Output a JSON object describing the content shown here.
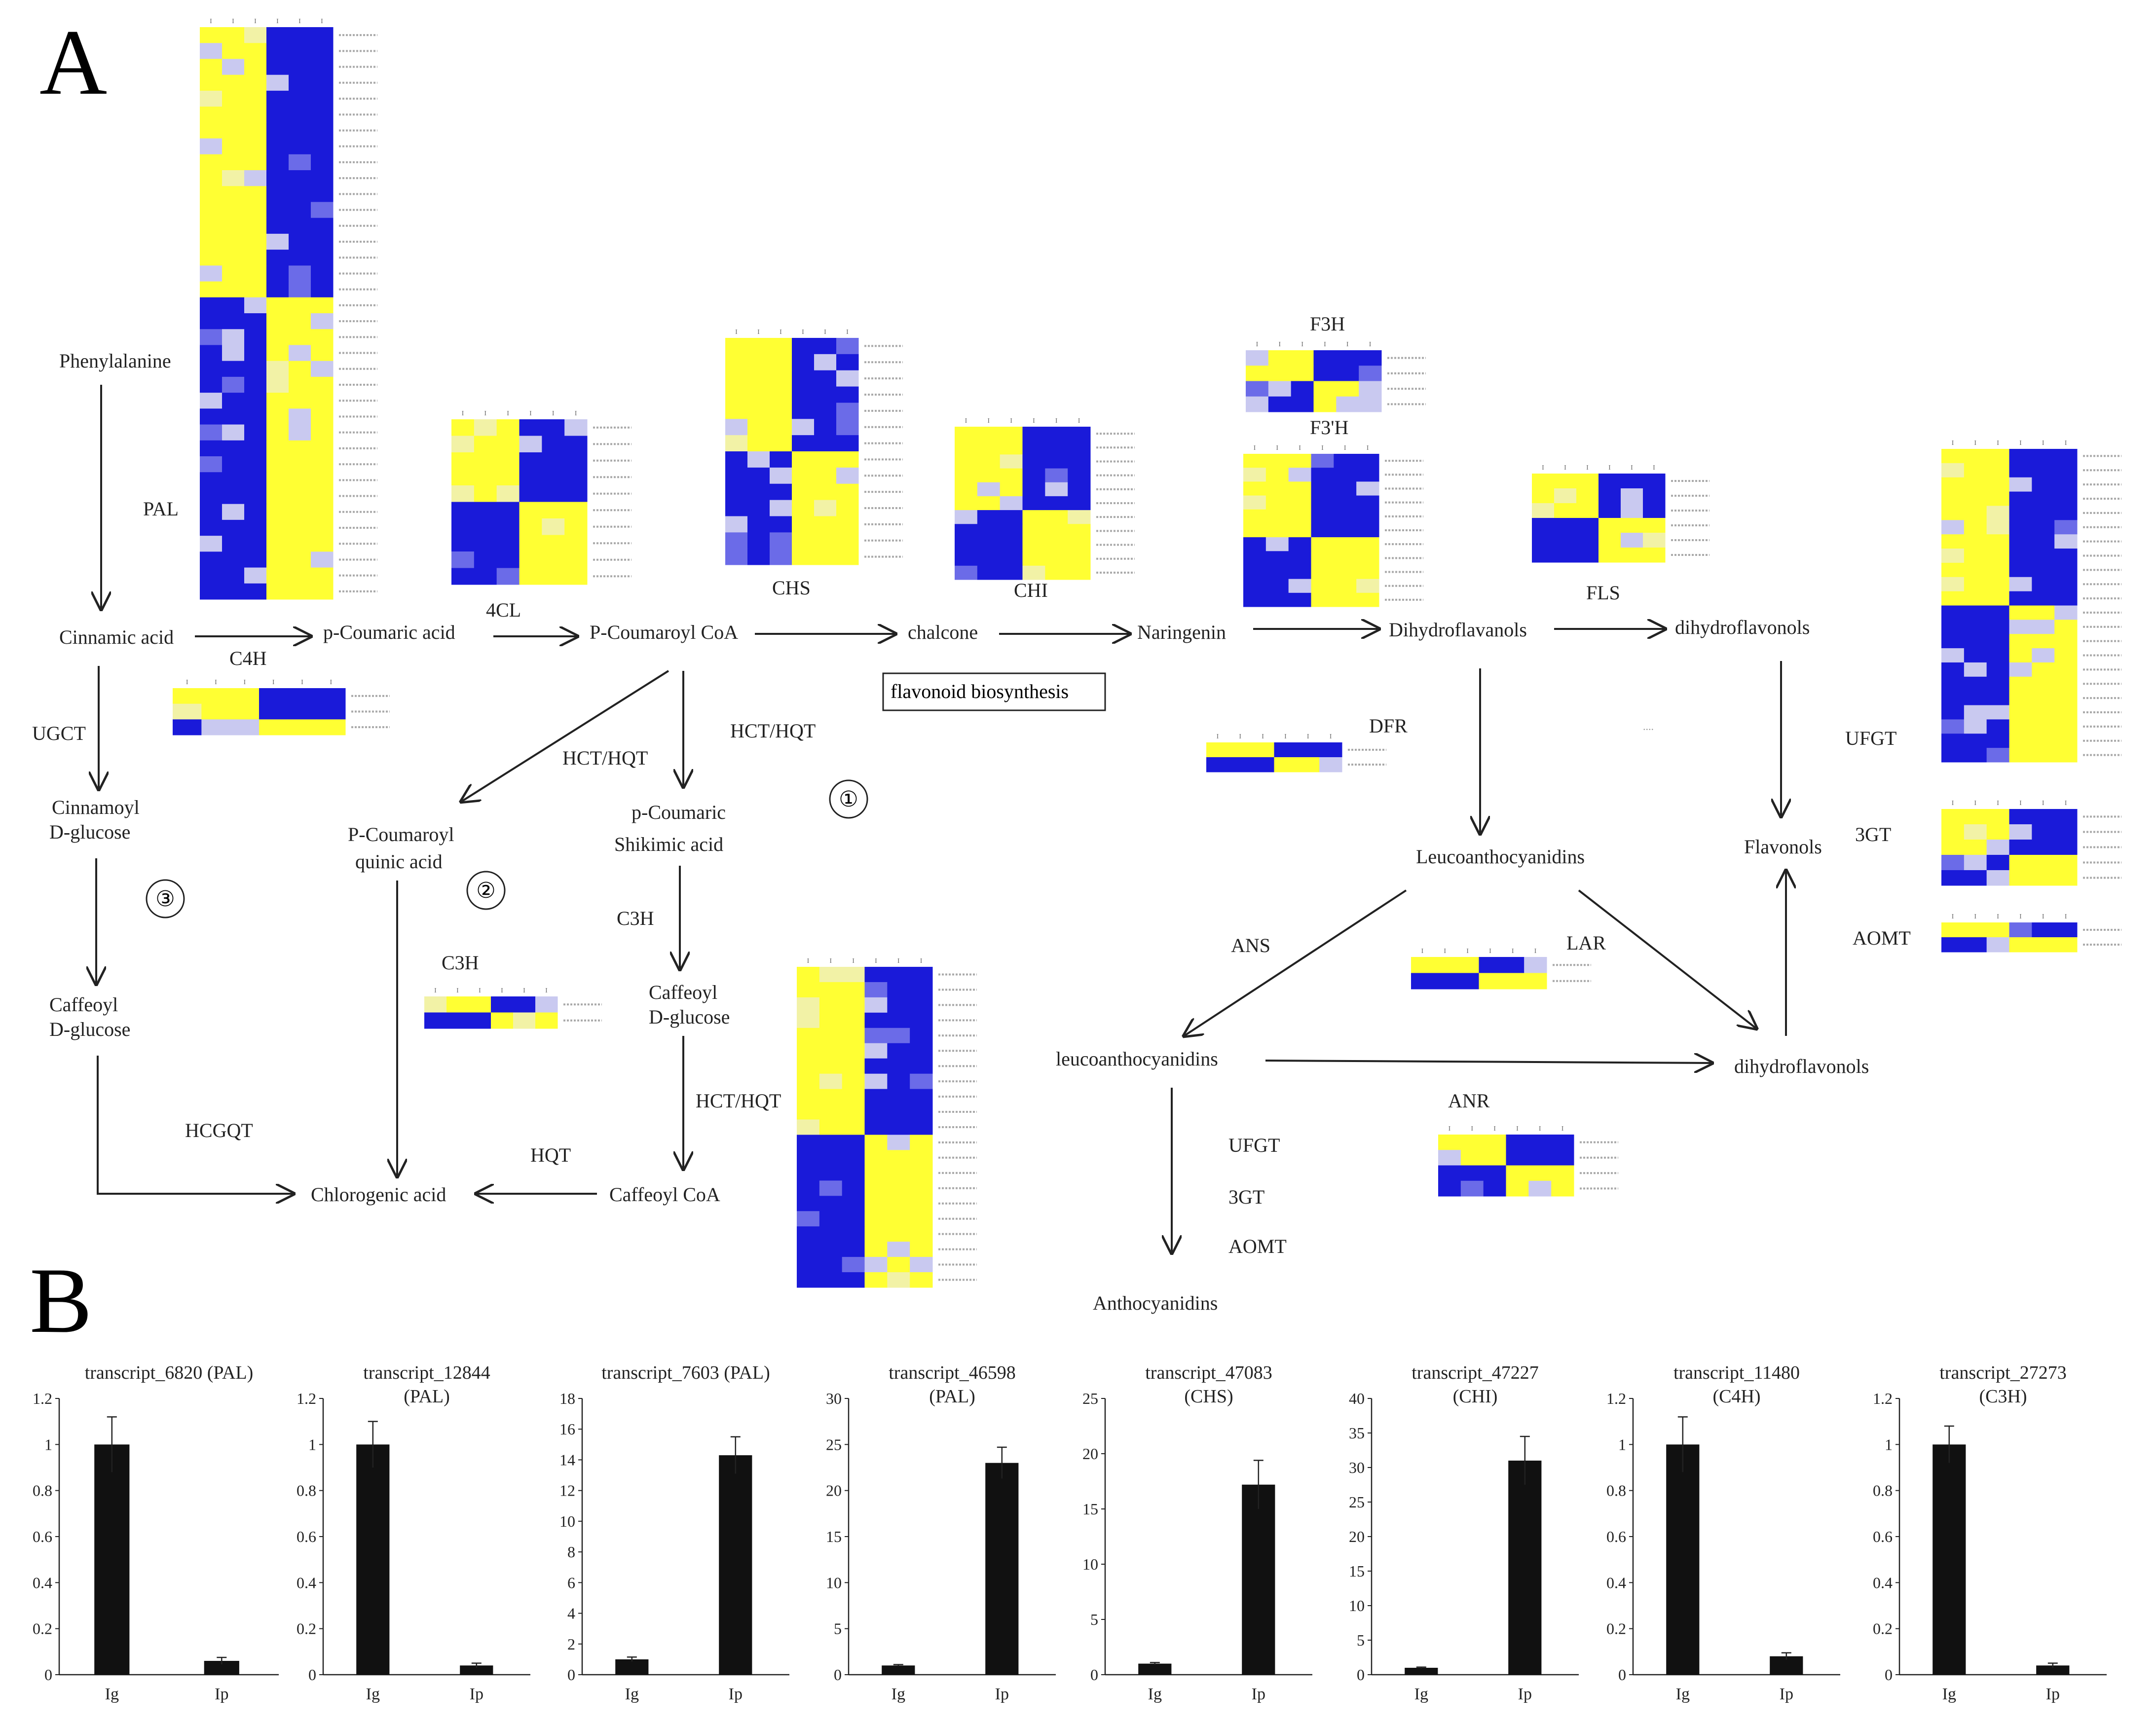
{
  "panels": {
    "a": "A",
    "b": "B"
  },
  "colors": {
    "low": "#1a1ad9",
    "high": "#ffff33",
    "line": "#222222",
    "bar": "#111111"
  },
  "nodes": [
    {
      "id": "phe",
      "label": "Phenylalanine"
    },
    {
      "id": "cin",
      "label": "Cinnamic acid"
    },
    {
      "id": "pcou",
      "label": "p-Coumaric acid"
    },
    {
      "id": "pcoa",
      "label": "P-Coumaroyl CoA"
    },
    {
      "id": "chal",
      "label": "chalcone"
    },
    {
      "id": "nar",
      "label": "Naringenin"
    },
    {
      "id": "dhf1",
      "label": "Dihydroflavanols"
    },
    {
      "id": "dhf2",
      "label": "dihydroflavonols"
    },
    {
      "id": "cinglu1",
      "label": "Cinnamoyl"
    },
    {
      "id": "cinglu2",
      "label": "D-glucose"
    },
    {
      "id": "pcq1",
      "label": "P-Coumaroyl"
    },
    {
      "id": "pcq2",
      "label": "quinic acid"
    },
    {
      "id": "pcs1",
      "label": "p-Coumaric"
    },
    {
      "id": "pcs2",
      "label": "Shikimic acid"
    },
    {
      "id": "cafglu1",
      "label": "Caffeoyl"
    },
    {
      "id": "cafglu2",
      "label": "D-glucose"
    },
    {
      "id": "caf2a",
      "label": "Caffeoyl"
    },
    {
      "id": "caf2b",
      "label": "D-glucose"
    },
    {
      "id": "chl",
      "label": "Chlorogenic acid"
    },
    {
      "id": "cafcoa",
      "label": "Caffeoyl  CoA"
    },
    {
      "id": "leu1",
      "label": "Leucoanthocyanidins"
    },
    {
      "id": "leu2",
      "label": "leucoanthocyanidins"
    },
    {
      "id": "dhf3",
      "label": "dihydroflavonols"
    },
    {
      "id": "flav",
      "label": "Flavonols"
    },
    {
      "id": "anth",
      "label": "Anthocyanidins"
    }
  ],
  "enzymes": [
    {
      "id": "pal",
      "label": "PAL"
    },
    {
      "id": "c4h",
      "label": "C4H"
    },
    {
      "id": "cl4",
      "label": "4CL"
    },
    {
      "id": "chs",
      "label": "CHS"
    },
    {
      "id": "chi",
      "label": "CHI"
    },
    {
      "id": "f3h",
      "label": "F3H"
    },
    {
      "id": "f3ph",
      "label": "F3'H"
    },
    {
      "id": "fls",
      "label": "FLS"
    },
    {
      "id": "dfr",
      "label": "DFR"
    },
    {
      "id": "ugct",
      "label": "UGCT"
    },
    {
      "id": "hct1",
      "label": "HCT/HQT"
    },
    {
      "id": "hct2",
      "label": "HCT/HQT"
    },
    {
      "id": "c3h1",
      "label": "C3H"
    },
    {
      "id": "c3h2",
      "label": "C3H"
    },
    {
      "id": "hct3",
      "label": "HCT/HQT"
    },
    {
      "id": "hcgqt",
      "label": "HCGQT"
    },
    {
      "id": "hqt",
      "label": "HQT"
    },
    {
      "id": "ans",
      "label": "ANS"
    },
    {
      "id": "lar",
      "label": "LAR"
    },
    {
      "id": "anr",
      "label": "ANR"
    },
    {
      "id": "ufgt1",
      "label": "UFGT"
    },
    {
      "id": "gt1",
      "label": "3GT"
    },
    {
      "id": "aomt1",
      "label": "AOMT"
    },
    {
      "id": "ufgt2",
      "label": "UFGT"
    },
    {
      "id": "gt2",
      "label": "3GT"
    },
    {
      "id": "aomt2",
      "label": "AOMT"
    }
  ],
  "box_label": "flavonoid biosynthesis",
  "circles": [
    "①",
    "②",
    "③"
  ],
  "dots": "....",
  "heatmap_col_labels": [
    "I",
    "I",
    "I",
    "I",
    "I",
    "I"
  ],
  "heatmaps": [
    {
      "id": "PAL",
      "rows": 36,
      "split": 0.45
    },
    {
      "id": "C4H",
      "rows": 3,
      "split": 0.5
    },
    {
      "id": "4CL",
      "rows": 10,
      "split": 0.5
    },
    {
      "id": "CHS",
      "rows": 14,
      "split": 0.5
    },
    {
      "id": "CHI",
      "rows": 11,
      "split": 0.5
    },
    {
      "id": "F3H",
      "rows": 4,
      "split": 0.5
    },
    {
      "id": "F3'H",
      "rows": 11,
      "split": 0.5
    },
    {
      "id": "FLS",
      "rows": 6,
      "split": 0.5
    },
    {
      "id": "DFR",
      "rows": 2,
      "split": 0.5
    },
    {
      "id": "C3H",
      "rows": 2,
      "split": 0.5
    },
    {
      "id": "HQT",
      "rows": 21,
      "split": 0.5
    },
    {
      "id": "LAR",
      "rows": 2,
      "split": 0.5
    },
    {
      "id": "ANR",
      "rows": 4,
      "split": 0.5
    },
    {
      "id": "UFGT",
      "rows": 22,
      "split": 0.5
    },
    {
      "id": "3GT",
      "rows": 5,
      "split": 0.5
    },
    {
      "id": "AOMT",
      "rows": 2,
      "split": 0.5
    }
  ],
  "chart_data": [
    {
      "type": "bar",
      "title": [
        "transcript_6820 (PAL)"
      ],
      "categories": [
        "Ig",
        "Ip"
      ],
      "values": [
        1,
        0.06
      ],
      "errors": [
        0.12,
        0.015
      ],
      "ylim": [
        0,
        1.2
      ],
      "yticks": [
        "0",
        "0.2",
        "0.4",
        "0.6",
        "0.8",
        "1",
        "1.2"
      ]
    },
    {
      "type": "bar",
      "title": [
        "transcript_12844",
        "(PAL)"
      ],
      "categories": [
        "Ig",
        "Ip"
      ],
      "values": [
        1,
        0.04
      ],
      "errors": [
        0.1,
        0.01
      ],
      "ylim": [
        0,
        1.2
      ],
      "yticks": [
        "0",
        "0.2",
        "0.4",
        "0.6",
        "0.8",
        "1",
        "1.2"
      ]
    },
    {
      "type": "bar",
      "title": [
        "transcript_7603 (PAL)"
      ],
      "categories": [
        "Ig",
        "Ip"
      ],
      "values": [
        1,
        14.3
      ],
      "errors": [
        0.15,
        1.2
      ],
      "ylim": [
        0,
        18
      ],
      "yticks": [
        "0",
        "2",
        "4",
        "6",
        "8",
        "10",
        "12",
        "14",
        "16",
        "18"
      ]
    },
    {
      "type": "bar",
      "title": [
        "transcript_46598",
        "(PAL)"
      ],
      "categories": [
        "Ig",
        "Ip"
      ],
      "values": [
        1,
        23
      ],
      "errors": [
        0.1,
        1.7
      ],
      "ylim": [
        0,
        30
      ],
      "yticks": [
        "0",
        "5",
        "10",
        "15",
        "20",
        "25",
        "30"
      ]
    },
    {
      "type": "bar",
      "title": [
        "transcript_47083",
        "(CHS)"
      ],
      "categories": [
        "Ig",
        "Ip"
      ],
      "values": [
        1,
        17.2
      ],
      "errors": [
        0.1,
        2.2
      ],
      "ylim": [
        0,
        25
      ],
      "yticks": [
        "0",
        "5",
        "10",
        "15",
        "20",
        "25"
      ]
    },
    {
      "type": "bar",
      "title": [
        "transcript_47227",
        "(CHI)"
      ],
      "categories": [
        "Ig",
        "Ip"
      ],
      "values": [
        1,
        31
      ],
      "errors": [
        0.1,
        3.5
      ],
      "ylim": [
        0,
        40
      ],
      "yticks": [
        "0",
        "5",
        "10",
        "15",
        "20",
        "25",
        "30",
        "35",
        "40"
      ]
    },
    {
      "type": "bar",
      "title": [
        "transcript_11480",
        "(C4H)"
      ],
      "categories": [
        "Ig",
        "Ip"
      ],
      "values": [
        1,
        0.08
      ],
      "errors": [
        0.12,
        0.015
      ],
      "ylim": [
        0,
        1.2
      ],
      "yticks": [
        "0",
        "0.2",
        "0.4",
        "0.6",
        "0.8",
        "1",
        "1.2"
      ]
    },
    {
      "type": "bar",
      "title": [
        "transcript_27273",
        "(C3H)"
      ],
      "categories": [
        "Ig",
        "Ip"
      ],
      "values": [
        1,
        0.04
      ],
      "errors": [
        0.08,
        0.01
      ],
      "ylim": [
        0,
        1.2
      ],
      "yticks": [
        "0",
        "0.2",
        "0.4",
        "0.6",
        "0.8",
        "1",
        "1.2"
      ]
    }
  ]
}
